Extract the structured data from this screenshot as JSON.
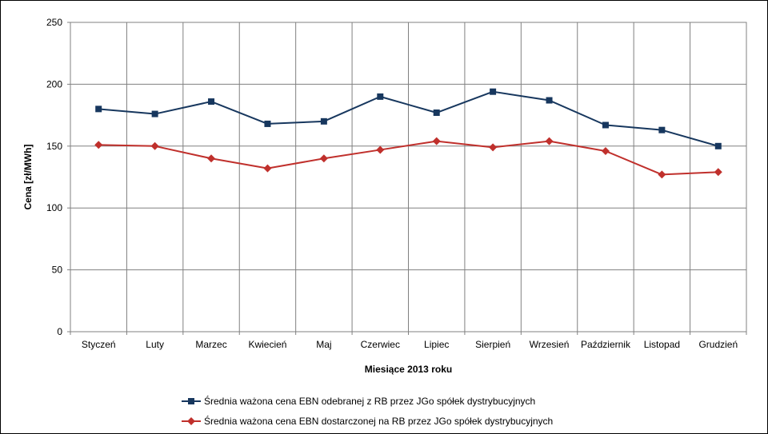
{
  "chart_data": {
    "type": "line",
    "title": "",
    "xlabel": "Miesiące 2013  roku",
    "ylabel": "Cena [zł/MWh]",
    "ylim": [
      0,
      250
    ],
    "yticks": [
      0,
      50,
      100,
      150,
      200,
      250
    ],
    "grid": true,
    "legend_position": "bottom",
    "categories": [
      "Styczeń",
      "Luty",
      "Marzec",
      "Kwiecień",
      "Maj",
      "Czerwiec",
      "Lipiec",
      "Sierpień",
      "Wrzesień",
      "Październik",
      "Listopad",
      "Grudzień"
    ],
    "series": [
      {
        "name": "Średnia ważona cena EBN odebranej z RB przez JGo spółek dystrybucyjnych",
        "color": "#17375e",
        "marker": "square",
        "values": [
          180,
          176,
          186,
          168,
          170,
          190,
          177,
          194,
          187,
          167,
          163,
          150
        ]
      },
      {
        "name": "Średnia ważona cena EBN dostarczonej na RB przez JGo spółek dystrybucyjnych",
        "color": "#c0302c",
        "marker": "diamond",
        "values": [
          151,
          150,
          140,
          132,
          140,
          147,
          154,
          149,
          154,
          146,
          127,
          129
        ]
      }
    ]
  }
}
